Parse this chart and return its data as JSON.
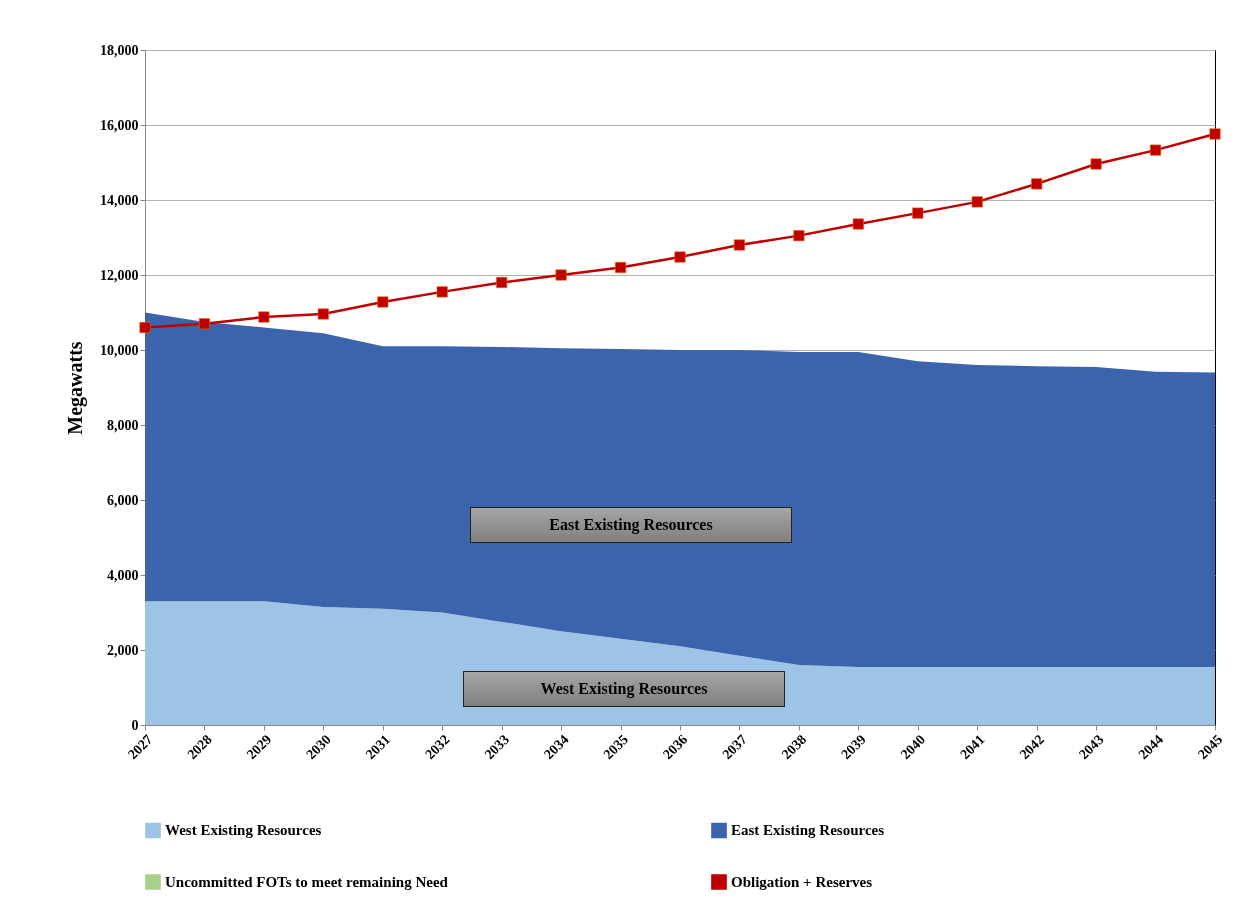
{
  "chart_data": {
    "type": "area",
    "stacked": true,
    "ylabel": "Megawatts",
    "categories": [
      "2027",
      "2028",
      "2029",
      "2030",
      "2031",
      "2032",
      "2033",
      "2034",
      "2035",
      "2036",
      "2037",
      "2038",
      "2039",
      "2040",
      "2041",
      "2042",
      "2043",
      "2044",
      "2045"
    ],
    "series": [
      {
        "name": "West Existing Resources",
        "color": "#9dc3e6",
        "values": [
          3300,
          3300,
          3300,
          3150,
          3100,
          3000,
          2750,
          2500,
          2300,
          2100,
          1850,
          1600,
          1550,
          1550,
          1550,
          1550,
          1550,
          1550,
          1550
        ]
      },
      {
        "name": "East Existing Resources",
        "color": "#3c64ac",
        "values": [
          7700,
          7450,
          7300,
          7300,
          7000,
          7100,
          7330,
          7550,
          7730,
          7900,
          8150,
          8350,
          8400,
          8150,
          8050,
          8020,
          8000,
          7870,
          7850
        ]
      },
      {
        "name": "Uncommitted FOTs to meet remaining Need",
        "color": "#a9d18e",
        "values": [
          null,
          null,
          null,
          null,
          null,
          null,
          null,
          null,
          null,
          null,
          null,
          null,
          null,
          null,
          null,
          null,
          null,
          null,
          null
        ]
      },
      {
        "name": "Obligation + Reserves",
        "type": "line",
        "marker": "square",
        "color": "#c00000",
        "values": [
          10600,
          10700,
          10880,
          10960,
          11280,
          11550,
          11800,
          12000,
          12200,
          12480,
          12800,
          13050,
          13360,
          13650,
          13950,
          14430,
          14960,
          15330,
          15760
        ]
      }
    ],
    "ylim": [
      0,
      18000
    ],
    "yticks": [
      0,
      {
        "value": 2000,
        "label": "2,000"
      },
      {
        "value": 4000,
        "label": "4,000"
      },
      {
        "value": 6000,
        "label": "6,000"
      },
      {
        "value": 8000,
        "label": "8,000"
      },
      {
        "value": 10000,
        "label": "10,000"
      },
      {
        "value": 12000,
        "label": "12,000"
      },
      {
        "value": 14000,
        "label": "14,000"
      },
      {
        "value": 16000,
        "label": "16,000"
      },
      {
        "value": 18000,
        "label": "18,000"
      }
    ],
    "grid": "y",
    "legend": "bottom",
    "annotations": [
      "East Existing Resources",
      "West Existing Resources"
    ]
  }
}
